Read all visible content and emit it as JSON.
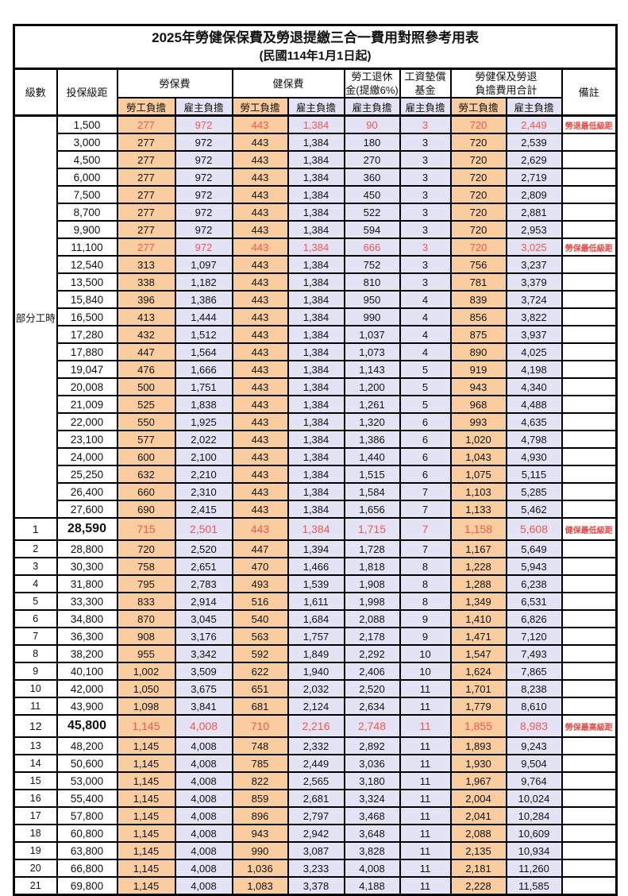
{
  "title": "2025年勞健保保費及勞退提繳三合一費用對照參考用表",
  "subtitle": "(民國114年1月1日起)",
  "colors": {
    "employee_column_bg": "#F9CDA0",
    "employer_column_bg": "#E3E3F5",
    "highlight_number_text": "#F4564E",
    "remark_text": "#E94743",
    "border": "#000000"
  },
  "header": {
    "level": "級數",
    "bracket": "投保級距",
    "labor_insurance": "勞保費",
    "health_insurance": "健保費",
    "pension_line1": "勞工退休",
    "pension_line2": "金(提繳6%)",
    "wage_fund_line1": "工資墊償",
    "wage_fund_line2": "基金",
    "total_line1": "勞健保及勞退",
    "total_line2": "負擔費用合計",
    "remark": "備註",
    "employee": "勞工負擔",
    "employer": "雇主負擔"
  },
  "part_time_label": "部分工時",
  "rows": [
    {
      "level": "",
      "bracket": "1,500",
      "li_emp": "277",
      "li_er": "972",
      "hi_emp": "443",
      "hi_er": "1,384",
      "pension": "90",
      "fund": "3",
      "tot_emp": "720",
      "tot_er": "2,449",
      "remark": "勞退最低級距",
      "highlight": true
    },
    {
      "level": "",
      "bracket": "3,000",
      "li_emp": "277",
      "li_er": "972",
      "hi_emp": "443",
      "hi_er": "1,384",
      "pension": "180",
      "fund": "3",
      "tot_emp": "720",
      "tot_er": "2,539"
    },
    {
      "level": "",
      "bracket": "4,500",
      "li_emp": "277",
      "li_er": "972",
      "hi_emp": "443",
      "hi_er": "1,384",
      "pension": "270",
      "fund": "3",
      "tot_emp": "720",
      "tot_er": "2,629"
    },
    {
      "level": "",
      "bracket": "6,000",
      "li_emp": "277",
      "li_er": "972",
      "hi_emp": "443",
      "hi_er": "1,384",
      "pension": "360",
      "fund": "3",
      "tot_emp": "720",
      "tot_er": "2,719"
    },
    {
      "level": "",
      "bracket": "7,500",
      "li_emp": "277",
      "li_er": "972",
      "hi_emp": "443",
      "hi_er": "1,384",
      "pension": "450",
      "fund": "3",
      "tot_emp": "720",
      "tot_er": "2,809"
    },
    {
      "level": "",
      "bracket": "8,700",
      "li_emp": "277",
      "li_er": "972",
      "hi_emp": "443",
      "hi_er": "1,384",
      "pension": "522",
      "fund": "3",
      "tot_emp": "720",
      "tot_er": "2,881"
    },
    {
      "level": "",
      "bracket": "9,900",
      "li_emp": "277",
      "li_er": "972",
      "hi_emp": "443",
      "hi_er": "1,384",
      "pension": "594",
      "fund": "3",
      "tot_emp": "720",
      "tot_er": "2,953"
    },
    {
      "level": "",
      "bracket": "11,100",
      "li_emp": "277",
      "li_er": "972",
      "hi_emp": "443",
      "hi_er": "1,384",
      "pension": "666",
      "fund": "3",
      "tot_emp": "720",
      "tot_er": "3,025",
      "remark": "勞保最低級距",
      "highlight": true
    },
    {
      "level": "",
      "bracket": "12,540",
      "li_emp": "313",
      "li_er": "1,097",
      "hi_emp": "443",
      "hi_er": "1,384",
      "pension": "752",
      "fund": "3",
      "tot_emp": "756",
      "tot_er": "3,237"
    },
    {
      "level": "",
      "bracket": "13,500",
      "li_emp": "338",
      "li_er": "1,182",
      "hi_emp": "443",
      "hi_er": "1,384",
      "pension": "810",
      "fund": "3",
      "tot_emp": "781",
      "tot_er": "3,379"
    },
    {
      "level": "",
      "bracket": "15,840",
      "li_emp": "396",
      "li_er": "1,386",
      "hi_emp": "443",
      "hi_er": "1,384",
      "pension": "950",
      "fund": "4",
      "tot_emp": "839",
      "tot_er": "3,724"
    },
    {
      "level": "",
      "bracket": "16,500",
      "li_emp": "413",
      "li_er": "1,444",
      "hi_emp": "443",
      "hi_er": "1,384",
      "pension": "990",
      "fund": "4",
      "tot_emp": "856",
      "tot_er": "3,822"
    },
    {
      "level": "",
      "bracket": "17,280",
      "li_emp": "432",
      "li_er": "1,512",
      "hi_emp": "443",
      "hi_er": "1,384",
      "pension": "1,037",
      "fund": "4",
      "tot_emp": "875",
      "tot_er": "3,937"
    },
    {
      "level": "",
      "bracket": "17,880",
      "li_emp": "447",
      "li_er": "1,564",
      "hi_emp": "443",
      "hi_er": "1,384",
      "pension": "1,073",
      "fund": "4",
      "tot_emp": "890",
      "tot_er": "4,025"
    },
    {
      "level": "",
      "bracket": "19,047",
      "li_emp": "476",
      "li_er": "1,666",
      "hi_emp": "443",
      "hi_er": "1,384",
      "pension": "1,143",
      "fund": "5",
      "tot_emp": "919",
      "tot_er": "4,198"
    },
    {
      "level": "",
      "bracket": "20,008",
      "li_emp": "500",
      "li_er": "1,751",
      "hi_emp": "443",
      "hi_er": "1,384",
      "pension": "1,200",
      "fund": "5",
      "tot_emp": "943",
      "tot_er": "4,340"
    },
    {
      "level": "",
      "bracket": "21,009",
      "li_emp": "525",
      "li_er": "1,838",
      "hi_emp": "443",
      "hi_er": "1,384",
      "pension": "1,261",
      "fund": "5",
      "tot_emp": "968",
      "tot_er": "4,488"
    },
    {
      "level": "",
      "bracket": "22,000",
      "li_emp": "550",
      "li_er": "1,925",
      "hi_emp": "443",
      "hi_er": "1,384",
      "pension": "1,320",
      "fund": "6",
      "tot_emp": "993",
      "tot_er": "4,635"
    },
    {
      "level": "",
      "bracket": "23,100",
      "li_emp": "577",
      "li_er": "2,022",
      "hi_emp": "443",
      "hi_er": "1,384",
      "pension": "1,386",
      "fund": "6",
      "tot_emp": "1,020",
      "tot_er": "4,798"
    },
    {
      "level": "",
      "bracket": "24,000",
      "li_emp": "600",
      "li_er": "2,100",
      "hi_emp": "443",
      "hi_er": "1,384",
      "pension": "1,440",
      "fund": "6",
      "tot_emp": "1,043",
      "tot_er": "4,930"
    },
    {
      "level": "",
      "bracket": "25,250",
      "li_emp": "632",
      "li_er": "2,210",
      "hi_emp": "443",
      "hi_er": "1,384",
      "pension": "1,515",
      "fund": "6",
      "tot_emp": "1,075",
      "tot_er": "5,115"
    },
    {
      "level": "",
      "bracket": "26,400",
      "li_emp": "660",
      "li_er": "2,310",
      "hi_emp": "443",
      "hi_er": "1,384",
      "pension": "1,584",
      "fund": "7",
      "tot_emp": "1,103",
      "tot_er": "5,285"
    },
    {
      "level": "",
      "bracket": "27,600",
      "li_emp": "690",
      "li_er": "2,415",
      "hi_emp": "443",
      "hi_er": "1,384",
      "pension": "1,656",
      "fund": "7",
      "tot_emp": "1,133",
      "tot_er": "5,462"
    },
    {
      "level": "1",
      "bracket": "28,590",
      "li_emp": "715",
      "li_er": "2,501",
      "hi_emp": "443",
      "hi_er": "1,384",
      "pension": "1,715",
      "fund": "7",
      "tot_emp": "1,158",
      "tot_er": "5,608",
      "remark": "健保最低級距",
      "highlight": true,
      "big": true
    },
    {
      "level": "2",
      "bracket": "28,800",
      "li_emp": "720",
      "li_er": "2,520",
      "hi_emp": "447",
      "hi_er": "1,394",
      "pension": "1,728",
      "fund": "7",
      "tot_emp": "1,167",
      "tot_er": "5,649"
    },
    {
      "level": "3",
      "bracket": "30,300",
      "li_emp": "758",
      "li_er": "2,651",
      "hi_emp": "470",
      "hi_er": "1,466",
      "pension": "1,818",
      "fund": "8",
      "tot_emp": "1,228",
      "tot_er": "5,943"
    },
    {
      "level": "4",
      "bracket": "31,800",
      "li_emp": "795",
      "li_er": "2,783",
      "hi_emp": "493",
      "hi_er": "1,539",
      "pension": "1,908",
      "fund": "8",
      "tot_emp": "1,288",
      "tot_er": "6,238"
    },
    {
      "level": "5",
      "bracket": "33,300",
      "li_emp": "833",
      "li_er": "2,914",
      "hi_emp": "516",
      "hi_er": "1,611",
      "pension": "1,998",
      "fund": "8",
      "tot_emp": "1,349",
      "tot_er": "6,531"
    },
    {
      "level": "6",
      "bracket": "34,800",
      "li_emp": "870",
      "li_er": "3,045",
      "hi_emp": "540",
      "hi_er": "1,684",
      "pension": "2,088",
      "fund": "9",
      "tot_emp": "1,410",
      "tot_er": "6,826"
    },
    {
      "level": "7",
      "bracket": "36,300",
      "li_emp": "908",
      "li_er": "3,176",
      "hi_emp": "563",
      "hi_er": "1,757",
      "pension": "2,178",
      "fund": "9",
      "tot_emp": "1,471",
      "tot_er": "7,120"
    },
    {
      "level": "8",
      "bracket": "38,200",
      "li_emp": "955",
      "li_er": "3,342",
      "hi_emp": "592",
      "hi_er": "1,849",
      "pension": "2,292",
      "fund": "10",
      "tot_emp": "1,547",
      "tot_er": "7,493"
    },
    {
      "level": "9",
      "bracket": "40,100",
      "li_emp": "1,002",
      "li_er": "3,509",
      "hi_emp": "622",
      "hi_er": "1,940",
      "pension": "2,406",
      "fund": "10",
      "tot_emp": "1,624",
      "tot_er": "7,865"
    },
    {
      "level": "10",
      "bracket": "42,000",
      "li_emp": "1,050",
      "li_er": "3,675",
      "hi_emp": "651",
      "hi_er": "2,032",
      "pension": "2,520",
      "fund": "11",
      "tot_emp": "1,701",
      "tot_er": "8,238"
    },
    {
      "level": "11",
      "bracket": "43,900",
      "li_emp": "1,098",
      "li_er": "3,841",
      "hi_emp": "681",
      "hi_er": "2,124",
      "pension": "2,634",
      "fund": "11",
      "tot_emp": "1,779",
      "tot_er": "8,610"
    },
    {
      "level": "12",
      "bracket": "45,800",
      "li_emp": "1,145",
      "li_er": "4,008",
      "hi_emp": "710",
      "hi_er": "2,216",
      "pension": "2,748",
      "fund": "11",
      "tot_emp": "1,855",
      "tot_er": "8,983",
      "remark": "勞保最高級距",
      "highlight": true,
      "big": true
    },
    {
      "level": "13",
      "bracket": "48,200",
      "li_emp": "1,145",
      "li_er": "4,008",
      "hi_emp": "748",
      "hi_er": "2,332",
      "pension": "2,892",
      "fund": "11",
      "tot_emp": "1,893",
      "tot_er": "9,243"
    },
    {
      "level": "14",
      "bracket": "50,600",
      "li_emp": "1,145",
      "li_er": "4,008",
      "hi_emp": "785",
      "hi_er": "2,449",
      "pension": "3,036",
      "fund": "11",
      "tot_emp": "1,930",
      "tot_er": "9,504"
    },
    {
      "level": "15",
      "bracket": "53,000",
      "li_emp": "1,145",
      "li_er": "4,008",
      "hi_emp": "822",
      "hi_er": "2,565",
      "pension": "3,180",
      "fund": "11",
      "tot_emp": "1,967",
      "tot_er": "9,764"
    },
    {
      "level": "16",
      "bracket": "55,400",
      "li_emp": "1,145",
      "li_er": "4,008",
      "hi_emp": "859",
      "hi_er": "2,681",
      "pension": "3,324",
      "fund": "11",
      "tot_emp": "2,004",
      "tot_er": "10,024"
    },
    {
      "level": "17",
      "bracket": "57,800",
      "li_emp": "1,145",
      "li_er": "4,008",
      "hi_emp": "896",
      "hi_er": "2,797",
      "pension": "3,468",
      "fund": "11",
      "tot_emp": "2,041",
      "tot_er": "10,284"
    },
    {
      "level": "18",
      "bracket": "60,800",
      "li_emp": "1,145",
      "li_er": "4,008",
      "hi_emp": "943",
      "hi_er": "2,942",
      "pension": "3,648",
      "fund": "11",
      "tot_emp": "2,088",
      "tot_er": "10,609"
    },
    {
      "level": "19",
      "bracket": "63,800",
      "li_emp": "1,145",
      "li_er": "4,008",
      "hi_emp": "990",
      "hi_er": "3,087",
      "pension": "3,828",
      "fund": "11",
      "tot_emp": "2,135",
      "tot_er": "10,934"
    },
    {
      "level": "20",
      "bracket": "66,800",
      "li_emp": "1,145",
      "li_er": "4,008",
      "hi_emp": "1,036",
      "hi_er": "3,233",
      "pension": "4,008",
      "fund": "11",
      "tot_emp": "2,181",
      "tot_er": "11,260"
    },
    {
      "level": "21",
      "bracket": "69,800",
      "li_emp": "1,145",
      "li_er": "4,008",
      "hi_emp": "1,083",
      "hi_er": "3,378",
      "pension": "4,188",
      "fund": "11",
      "tot_emp": "2,228",
      "tot_er": "11,585"
    }
  ]
}
